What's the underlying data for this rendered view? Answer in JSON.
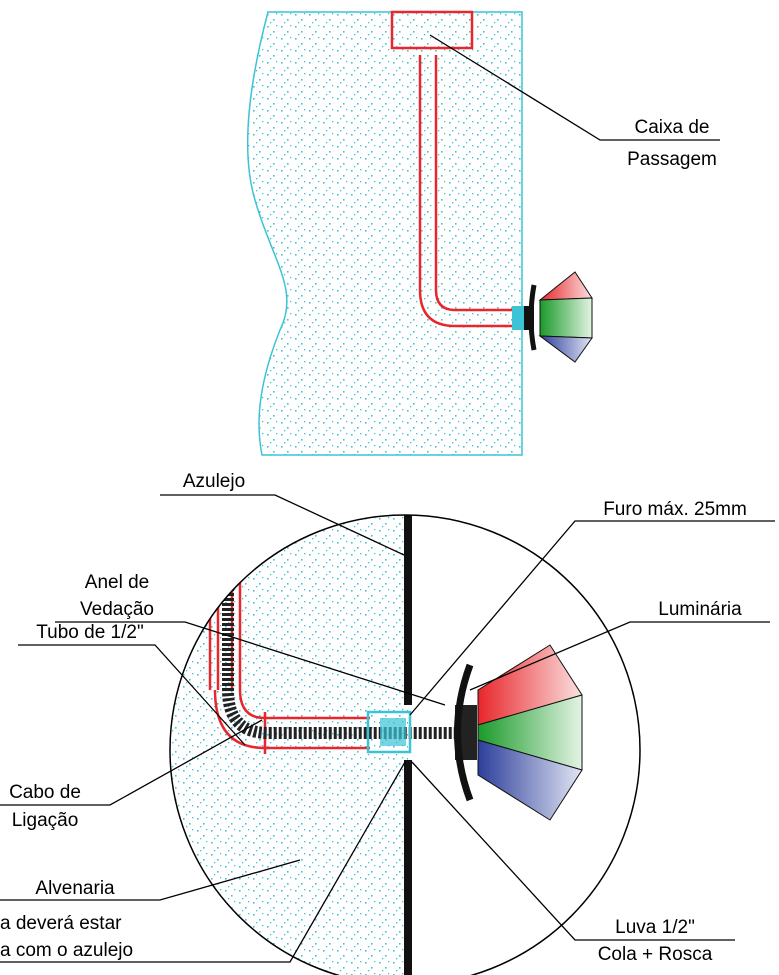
{
  "labels": {
    "caixa_de_passagem": [
      "Caixa de",
      "Passagem"
    ],
    "azulejo": [
      "Azulejo"
    ],
    "furo": [
      "Furo máx. 25mm"
    ],
    "anel_de_vedacao": [
      "Anel de",
      "Vedação"
    ],
    "luminaria": [
      "Luminária"
    ],
    "tubo": [
      "Tubo de 1/2\""
    ],
    "cabo_de_ligacao": [
      "Cabo de",
      "Ligação"
    ],
    "alvenaria": [
      "Alvenaria"
    ],
    "nota": [
      "a deverá estar",
      "a com o azulejo"
    ],
    "luva": [
      "Luva 1/2\"",
      "Cola + Rosca"
    ]
  }
}
